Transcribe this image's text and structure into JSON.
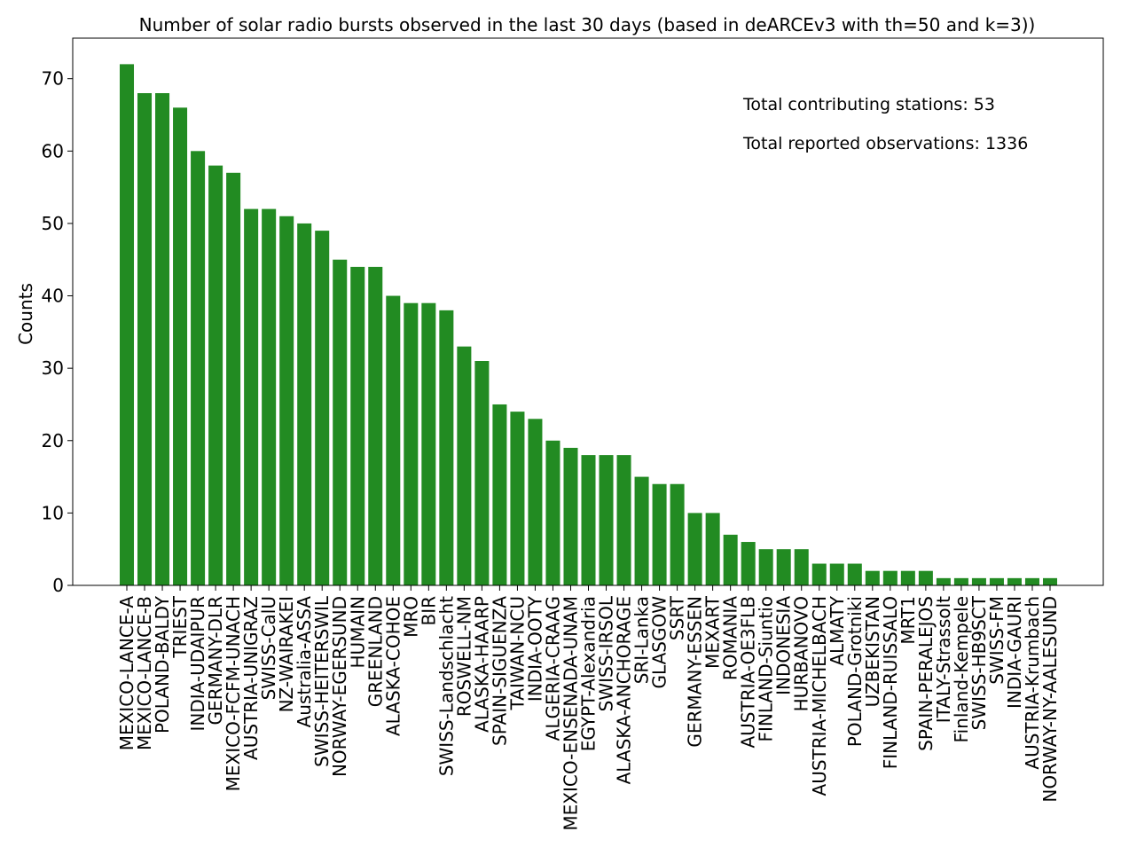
{
  "chart_data": {
    "type": "bar",
    "title": "Number of solar radio bursts observed in the last 30 days (based in deARCEv3 with th=50 and k=3))",
    "xlabel": "",
    "ylabel": "Counts",
    "ylim": [
      0,
      75.6
    ],
    "yticks": [
      0,
      10,
      20,
      30,
      40,
      50,
      60,
      70
    ],
    "grid": false,
    "bar_color": "#228b22",
    "categories": [
      "MEXICO-LANCE-A",
      "MEXICO-LANCE-B",
      "POLAND-BALDY",
      "TRIEST",
      "INDIA-UDAIPUR",
      "GERMANY-DLR",
      "MEXICO-FCFM-UNACH",
      "AUSTRIA-UNIGRAZ",
      "SWISS-CalU",
      "NZ-WAIRAKEI",
      "Australia-ASSA",
      "SWISS-HEITERSWIL",
      "NORWAY-EGERSUND",
      "HUMAIN",
      "GREENLAND",
      "ALASKA-COHOE",
      "MRO",
      "BIR",
      "SWISS-Landschlacht",
      "ROSWELL-NM",
      "ALASKA-HAARP",
      "SPAIN-SIGUENZA",
      "TAIWAN-NCU",
      "INDIA-OOTY",
      "ALGERIA-CRAAG",
      "MEXICO-ENSENADA-UNAM",
      "EGYPT-Alexandria",
      "SWISS-IRSOL",
      "ALASKA-ANCHORAGE",
      "SRI-Lanka",
      "GLASGOW",
      "SSRT",
      "GERMANY-ESSEN",
      "MEXART",
      "ROMANIA",
      "AUSTRIA-OE3FLB",
      "FINLAND-Siuntio",
      "INDONESIA",
      "HURBANOVO",
      "AUSTRIA-MICHELBACH",
      "ALMATY",
      "POLAND-Grotniki",
      "UZBEKISTAN",
      "FINLAND-RUISSALO",
      "MRT1",
      "SPAIN-PERALEJOS",
      "ITALY-Strassolt",
      "Finland-Kempele",
      "SWISS-HB9SCT",
      "SWISS-FM",
      "INDIA-GAURI",
      "AUSTRIA-Krumbach",
      "NORWAY-NY-AALESUND"
    ],
    "values": [
      72,
      68,
      68,
      66,
      60,
      58,
      57,
      52,
      52,
      51,
      50,
      49,
      45,
      44,
      44,
      40,
      39,
      39,
      38,
      33,
      31,
      25,
      24,
      23,
      20,
      19,
      18,
      18,
      18,
      15,
      14,
      14,
      10,
      10,
      7,
      6,
      5,
      5,
      5,
      3,
      3,
      3,
      2,
      2,
      2,
      2,
      1,
      1,
      1,
      1,
      1,
      1,
      1
    ],
    "annotations": [
      "Total contributing stations: 53",
      "Total reported observations: 1336"
    ]
  }
}
